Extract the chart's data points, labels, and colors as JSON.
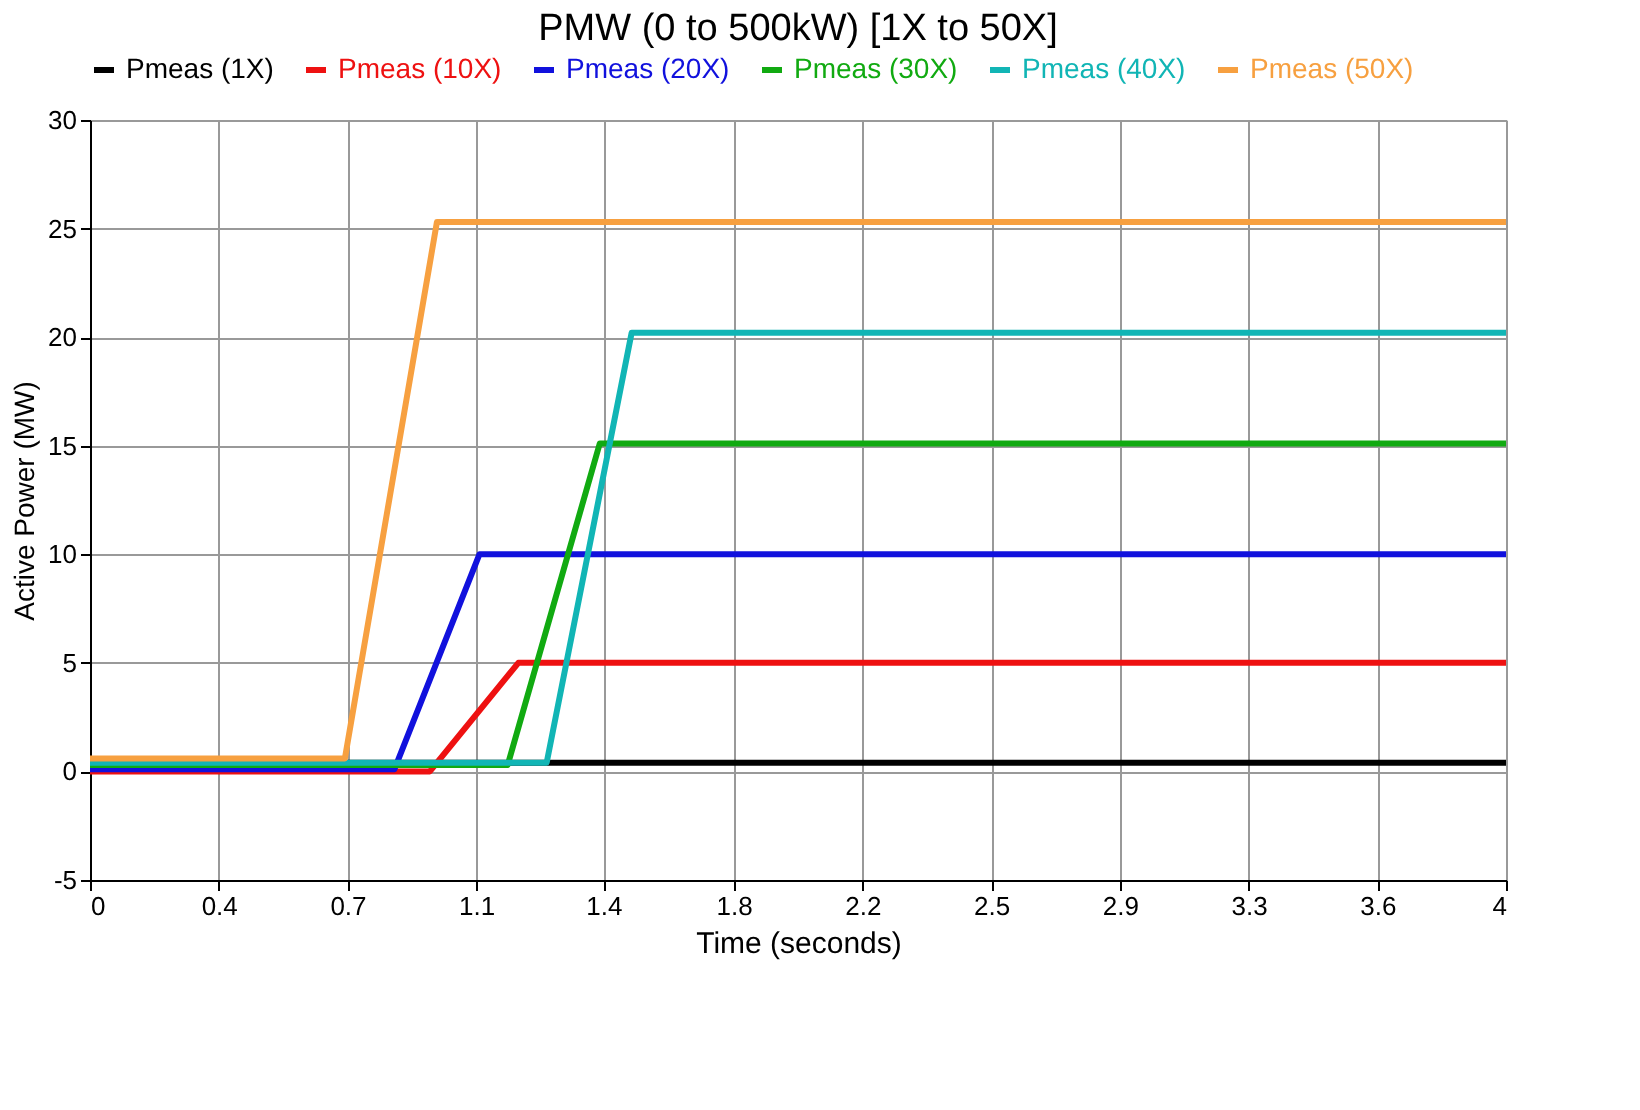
{
  "chart_data": {
    "type": "line",
    "title": "PMW (0 to 500kW) [1X to 50X]",
    "xlabel": "Time (seconds)",
    "ylabel": "Active Power (MW)",
    "xlim": [
      0,
      4
    ],
    "ylim": [
      -5,
      30
    ],
    "xticks": [
      0,
      {
        "value": 0.3636,
        "label": "0.4"
      },
      {
        "value": 0.7273,
        "label": "0.7"
      },
      {
        "value": 1.0909,
        "label": "1.1"
      },
      {
        "value": 1.45,
        "label": "1.4"
      },
      {
        "value": 1.8182,
        "label": "1.8"
      },
      {
        "value": 2.1818,
        "label": "2.2"
      },
      {
        "value": 2.5455,
        "label": "2.5"
      },
      {
        "value": 2.9091,
        "label": "2.9"
      },
      {
        "value": 3.2727,
        "label": "3.3"
      },
      {
        "value": 3.6364,
        "label": "3.6"
      },
      4
    ],
    "yticks": [
      -5,
      0,
      5,
      10,
      15,
      20,
      25,
      30
    ],
    "grid": true,
    "legend": "top",
    "line_style": "solid",
    "marker": "none",
    "series": [
      {
        "name": "Pmeas (1X)",
        "color": "#000000",
        "x": [
          0,
          4
        ],
        "values": [
          0.4,
          0.4
        ]
      },
      {
        "name": "Pmeas (10X)",
        "color": "#ee1111",
        "x": [
          0,
          0.96,
          1.21,
          4
        ],
        "values": [
          0,
          0,
          5,
          5
        ]
      },
      {
        "name": "Pmeas (20X)",
        "color": "#1111dd",
        "x": [
          0,
          0.86,
          1.1,
          4
        ],
        "values": [
          0.1,
          0.1,
          10,
          10
        ]
      },
      {
        "name": "Pmeas (30X)",
        "color": "#11aa11",
        "x": [
          0,
          1.18,
          1.44,
          4
        ],
        "values": [
          0.3,
          0.3,
          15.1,
          15.1
        ]
      },
      {
        "name": "Pmeas (40X)",
        "color": "#11b5b5",
        "x": [
          0,
          1.29,
          1.53,
          4
        ],
        "values": [
          0.4,
          0.4,
          20.2,
          20.2
        ]
      },
      {
        "name": "Pmeas (50X)",
        "color": "#f7a040",
        "x": [
          0,
          0.72,
          0.98,
          4
        ],
        "values": [
          0.6,
          0.6,
          25.3,
          25.3
        ]
      }
    ]
  }
}
